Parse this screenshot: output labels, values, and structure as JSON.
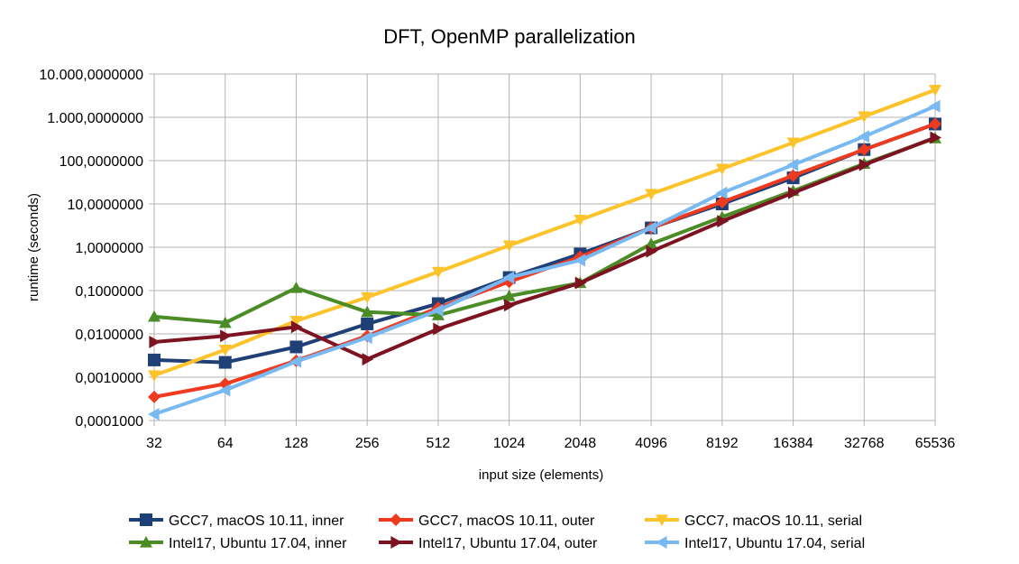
{
  "chart_data": {
    "type": "line",
    "title": "DFT, OpenMP parallelization",
    "xlabel": "input size (elements)",
    "ylabel": "runtime (seconds)",
    "y_scale": "log",
    "ylim": [
      0.0001,
      10000
    ],
    "grid": true,
    "legend_position": "bottom",
    "categories": [
      "32",
      "64",
      "128",
      "256",
      "512",
      "1024",
      "2048",
      "4096",
      "8192",
      "16384",
      "32768",
      "65536"
    ],
    "y_tick_labels": [
      "0,0001000",
      "0,0010000",
      "0,0100000",
      "0,1000000",
      "1,0000000",
      "10,0000000",
      "100,0000000",
      "1.000,0000000",
      "10.000,0000000"
    ],
    "series": [
      {
        "name": "GCC7, macOS 10.11, inner",
        "color": "#1f3f77",
        "marker": "square",
        "values": [
          0.0025,
          0.0022,
          0.005,
          0.017,
          0.05,
          0.2,
          0.7,
          2.8,
          10,
          40,
          180,
          700
        ]
      },
      {
        "name": "GCC7, macOS 10.11, outer",
        "color": "#ee3a1f",
        "marker": "diamond",
        "values": [
          0.00035,
          0.0007,
          0.0024,
          0.009,
          0.04,
          0.16,
          0.6,
          2.8,
          11,
          45,
          180,
          700
        ]
      },
      {
        "name": "GCC7, macOS 10.11, serial",
        "color": "#fdc32b",
        "marker": "triangle-down",
        "values": [
          0.0011,
          0.0043,
          0.02,
          0.07,
          0.27,
          1.1,
          4.3,
          17,
          65,
          260,
          1050,
          4300
        ]
      },
      {
        "name": "Intel17, Ubuntu 17.04, inner",
        "color": "#4b8c27",
        "marker": "triangle-up",
        "values": [
          0.025,
          0.018,
          0.115,
          0.032,
          0.027,
          0.075,
          0.15,
          1.2,
          5,
          20,
          85,
          330
        ]
      },
      {
        "name": "Intel17, Ubuntu 17.04, outer",
        "color": "#7d1321",
        "marker": "triangle-right",
        "values": [
          0.0065,
          0.009,
          0.0145,
          0.0026,
          0.013,
          0.046,
          0.15,
          0.8,
          4,
          18,
          80,
          340
        ]
      },
      {
        "name": "Intel17, Ubuntu 17.04, serial",
        "color": "#78b9f2",
        "marker": "triangle-left",
        "values": [
          0.00014,
          0.0005,
          0.0023,
          0.0082,
          0.035,
          0.2,
          0.5,
          2.8,
          18,
          80,
          360,
          1800
        ]
      }
    ]
  }
}
